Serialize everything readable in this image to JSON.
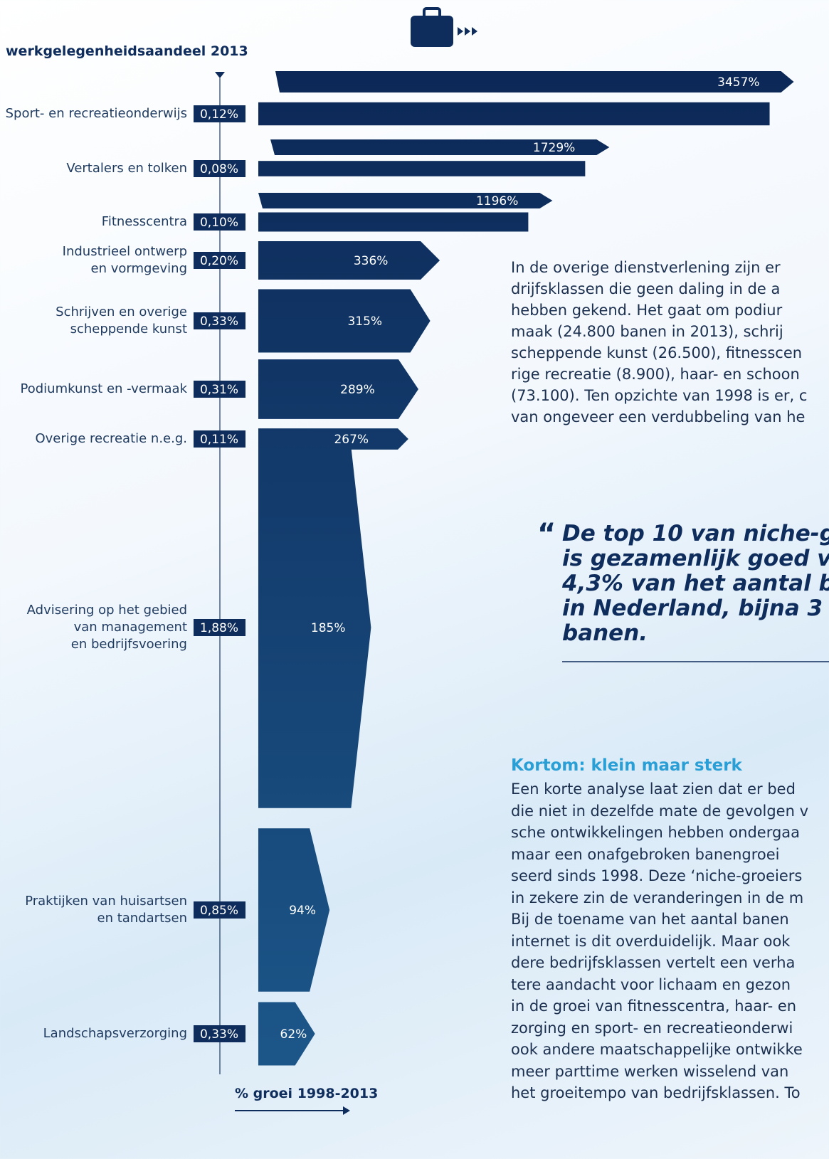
{
  "chart_data": {
    "type": "bar",
    "share_axis_title": "werkgelegenheidsaandeel 2013",
    "growth_axis_title": "% groei 1998-2013",
    "categories": [
      "Sport- en recreatieonderwijs",
      "Vertalers en tolken",
      "Fitnesscentra",
      "Industrieel ontwerp\nen vormgeving",
      "Schrijven en overige\nscheppende kunst",
      "Podiumkunst en -vermaak",
      "Overige recreatie n.e.g.",
      "Advisering op het gebied\nvan management\nen bedrijfsvoering",
      "Praktijken van huisartsen\nen tandartsen",
      "Landschapsverzorging"
    ],
    "shares": [
      0.12,
      0.08,
      0.1,
      0.2,
      0.33,
      0.31,
      0.11,
      1.88,
      0.85,
      0.33
    ],
    "share_labels": [
      "0,12%",
      "0,08%",
      "0,10%",
      "0,20%",
      "0,33%",
      "0,31%",
      "0,11%",
      "1,88%",
      "0,85%",
      "0,33%"
    ],
    "values": [
      3457,
      1729,
      1196,
      336,
      315,
      289,
      267,
      185,
      94,
      62
    ],
    "value_labels": [
      "3457%",
      "1729%",
      "1196%",
      "336%",
      "315%",
      "289%",
      "267%",
      "185%",
      "94%",
      "62%"
    ],
    "colors": [
      "#0c2857",
      "#1c5689"
    ]
  },
  "text": {
    "paragraph_1": [
      "In de overige dienstverlening zijn er",
      "drijfsklassen die geen daling in de a",
      "hebben gekend. Het gaat om podiur",
      "maak (24.800 banen in 2013), schrij",
      "scheppende kunst (26.500), fitnesscen",
      "rige recreatie (8.900), haar- en schoon",
      "(73.100). Ten opzichte van 1998 is er, c",
      "van ongeveer een verdubbeling van he"
    ],
    "quote_mark": "“",
    "quote": [
      "De top 10 van niche-g",
      "is gezamenlijk goed v",
      "4,3% van het aantal b",
      "in Nederland, bijna 3",
      "banen."
    ],
    "heading": "Kortom: klein maar sterk",
    "paragraph_2": [
      "Een korte analyse laat zien dat er bed",
      "die niet in dezelfde mate de gevolgen v",
      "sche ontwikkelingen hebben ondergaa",
      "maar een onafgebroken banengroei",
      "seerd sinds 1998. Deze ‘niche-groeiers",
      "in zekere zin de veranderingen in de m",
      "Bij de toename van het aantal banen",
      "internet is dit overduidelijk. Maar ook",
      "dere bedrijfsklassen vertelt een verha",
      "tere aandacht voor lichaam en gezon",
      "in de groei van fitnesscentra, haar- en",
      "zorging en sport- en recreatieonderwi",
      "ook andere maatschappelijke ontwikke",
      "meer parttime werken wisselend van",
      "het groeitempo van bedrijfsklassen. To"
    ]
  }
}
